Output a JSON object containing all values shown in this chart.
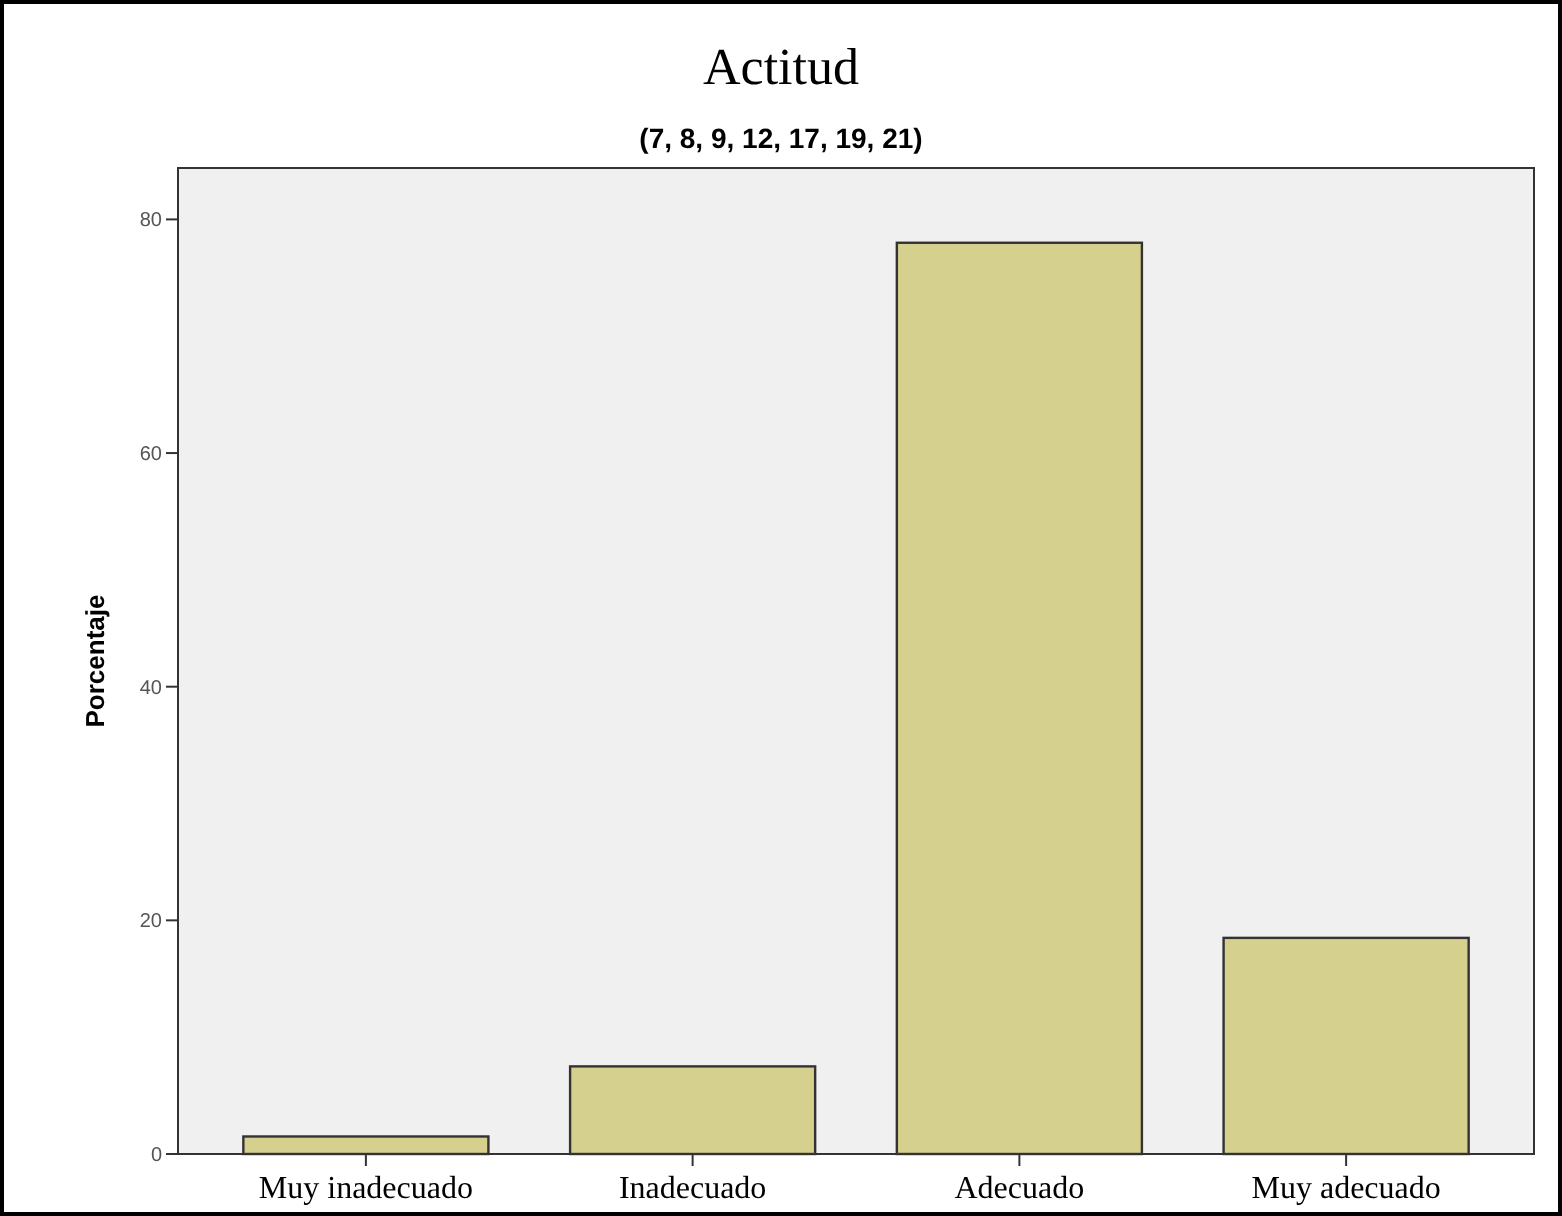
{
  "chart_data": {
    "type": "bar",
    "title": "Actitud",
    "subtitle": "(7, 8, 9, 12, 17, 19, 21)",
    "ylabel": "Porcentaje",
    "categories": [
      "Muy inadecuado",
      "Inadecuado",
      "Adecuado",
      "Muy adecuado"
    ],
    "values": [
      1.5,
      7.5,
      78,
      18.5
    ],
    "color": "#d6d08e",
    "ylim": [
      0,
      84.4
    ],
    "yticks": [
      0,
      20,
      40,
      60,
      80
    ],
    "grid": false
  }
}
